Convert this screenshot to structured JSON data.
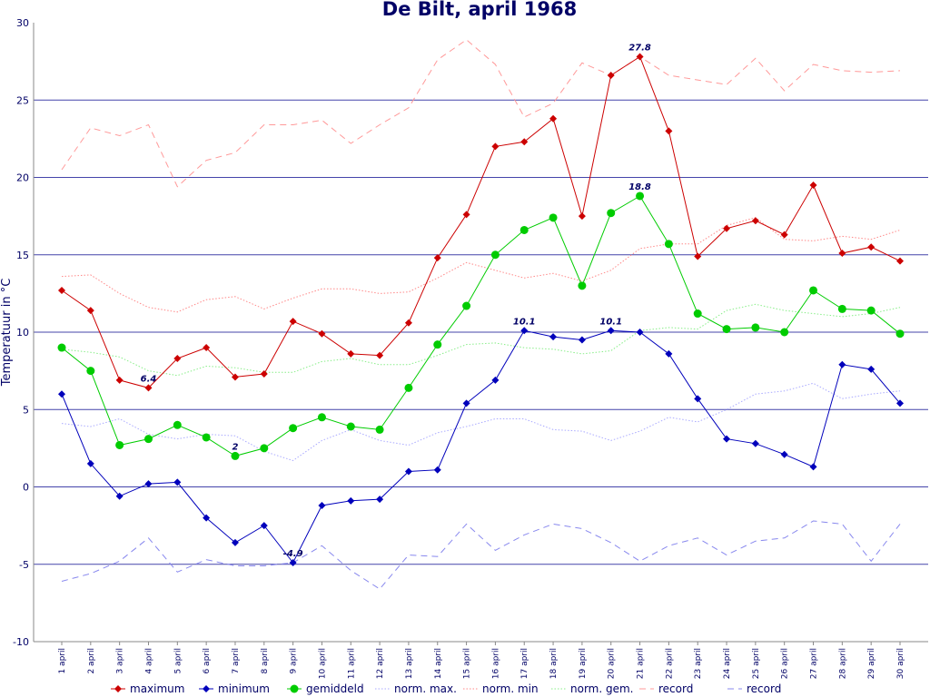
{
  "chart_data": {
    "type": "line",
    "title": "De Bilt, april 1968",
    "xlabel": "",
    "ylabel": "Temperatuur in °C",
    "ylim": [
      -10,
      30
    ],
    "yticks": [
      -10,
      -5,
      0,
      5,
      10,
      15,
      20,
      25,
      30
    ],
    "grid": true,
    "legend_position": "bottom",
    "categories": [
      "1 april",
      "2 april",
      "3 april",
      "4 april",
      "5 april",
      "6 april",
      "7 april",
      "8 april",
      "9 april",
      "10 april",
      "11 april",
      "12 april",
      "13 april",
      "14 april",
      "15 april",
      "16 april",
      "17 april",
      "18 april",
      "19 april",
      "20 april",
      "21 april",
      "22 april",
      "23 april",
      "24 april",
      "25 april",
      "26 april",
      "27 april",
      "28 april",
      "29 april",
      "30 april"
    ],
    "series": [
      {
        "name": "maximum",
        "color": "#cc0000",
        "style": "solid",
        "marker": "diamond",
        "values": [
          12.7,
          11.4,
          6.9,
          6.4,
          8.3,
          9.0,
          7.1,
          7.3,
          10.7,
          9.9,
          8.6,
          8.5,
          10.6,
          14.8,
          17.6,
          22.0,
          22.3,
          23.8,
          17.5,
          26.6,
          27.8,
          23.0,
          14.9,
          16.7,
          17.2,
          16.3,
          19.5,
          15.1,
          15.5,
          14.6
        ]
      },
      {
        "name": "minimum",
        "color": "#0000bb",
        "style": "solid",
        "marker": "diamond",
        "values": [
          6.0,
          1.5,
          -0.6,
          0.2,
          0.3,
          -2.0,
          -3.6,
          -2.5,
          -4.9,
          -1.2,
          -0.9,
          -0.8,
          1.0,
          1.1,
          5.4,
          6.9,
          10.1,
          9.7,
          9.5,
          10.1,
          10.0,
          8.6,
          5.7,
          3.1,
          2.8,
          2.1,
          1.3,
          7.9,
          7.6,
          5.4
        ]
      },
      {
        "name": "gemiddeld",
        "color": "#00cc00",
        "style": "solid",
        "marker": "circle",
        "values": [
          9.0,
          7.5,
          2.7,
          3.1,
          4.0,
          3.2,
          2.0,
          2.5,
          3.8,
          4.5,
          3.9,
          3.7,
          6.4,
          9.2,
          11.7,
          15.0,
          16.6,
          17.4,
          13.0,
          17.7,
          18.8,
          15.7,
          11.2,
          10.2,
          10.3,
          10.0,
          12.7,
          11.5,
          11.4,
          9.9
        ]
      },
      {
        "name": "norm. max.",
        "color": "#aaaaff",
        "style": "dotted",
        "marker": "none",
        "values": [
          4.1,
          3.9,
          4.4,
          3.4,
          3.1,
          3.4,
          3.3,
          2.3,
          1.7,
          3.0,
          3.7,
          3.0,
          2.7,
          3.5,
          3.9,
          4.4,
          4.4,
          3.7,
          3.6,
          3.0,
          3.6,
          4.5,
          4.2,
          5.0,
          6.0,
          6.2,
          6.7,
          5.7,
          6.0,
          6.2
        ]
      },
      {
        "name": "norm. min",
        "color": "#ff8888",
        "style": "dotted",
        "marker": "none",
        "values": [
          13.6,
          13.7,
          12.5,
          11.6,
          11.3,
          12.1,
          12.3,
          11.5,
          12.2,
          12.8,
          12.8,
          12.5,
          12.6,
          13.5,
          14.5,
          14.0,
          13.5,
          13.8,
          13.3,
          14.0,
          15.4,
          15.7,
          15.7,
          16.9,
          17.4,
          16.0,
          15.9,
          16.2,
          16.0,
          16.6
        ]
      },
      {
        "name": "norm. gem.",
        "color": "#88ee88",
        "style": "dotted",
        "marker": "none",
        "values": [
          8.9,
          8.7,
          8.4,
          7.5,
          7.2,
          7.8,
          7.7,
          7.4,
          7.4,
          8.1,
          8.3,
          7.9,
          7.9,
          8.5,
          9.2,
          9.3,
          9.0,
          8.9,
          8.6,
          8.8,
          10.1,
          10.3,
          10.2,
          11.4,
          11.8,
          11.4,
          11.2,
          11.0,
          11.2,
          11.6
        ]
      },
      {
        "name": "record",
        "color": "#ff9999",
        "style": "dashed",
        "marker": "none",
        "values": [
          20.5,
          23.2,
          22.7,
          23.4,
          19.4,
          21.1,
          21.6,
          23.4,
          23.4,
          23.7,
          22.2,
          23.4,
          24.5,
          27.6,
          28.9,
          27.3,
          23.9,
          24.8,
          27.4,
          26.6,
          27.8,
          26.6,
          26.3,
          26.0,
          27.7,
          25.6,
          27.3,
          26.9,
          26.8,
          26.9
        ]
      },
      {
        "name": "record",
        "color": "#8888ee",
        "style": "dashed",
        "marker": "none",
        "values": [
          -6.1,
          -5.6,
          -4.8,
          -3.3,
          -5.5,
          -4.7,
          -5.1,
          -5.1,
          -4.9,
          -3.8,
          -5.4,
          -6.6,
          -4.4,
          -4.5,
          -2.4,
          -4.1,
          -3.1,
          -2.4,
          -2.7,
          -3.6,
          -4.8,
          -3.8,
          -3.3,
          -4.4,
          -3.5,
          -3.3,
          -2.2,
          -2.4,
          -4.8,
          -2.4
        ]
      }
    ],
    "annotations": [
      {
        "series": "minimum",
        "category": "17 april",
        "text": "10.1"
      },
      {
        "series": "minimum",
        "category": "20 april",
        "text": "10.1"
      },
      {
        "series": "maximum",
        "category": "21 april",
        "text": "27.8"
      },
      {
        "series": "gemiddeld",
        "category": "21 april",
        "text": "18.8"
      },
      {
        "series": "maximum",
        "category": "4 april",
        "text": "6.4"
      },
      {
        "series": "gemiddeld",
        "category": "7 april",
        "text": "2"
      },
      {
        "series": "minimum",
        "category": "9 april",
        "text": "-4.9"
      }
    ]
  }
}
